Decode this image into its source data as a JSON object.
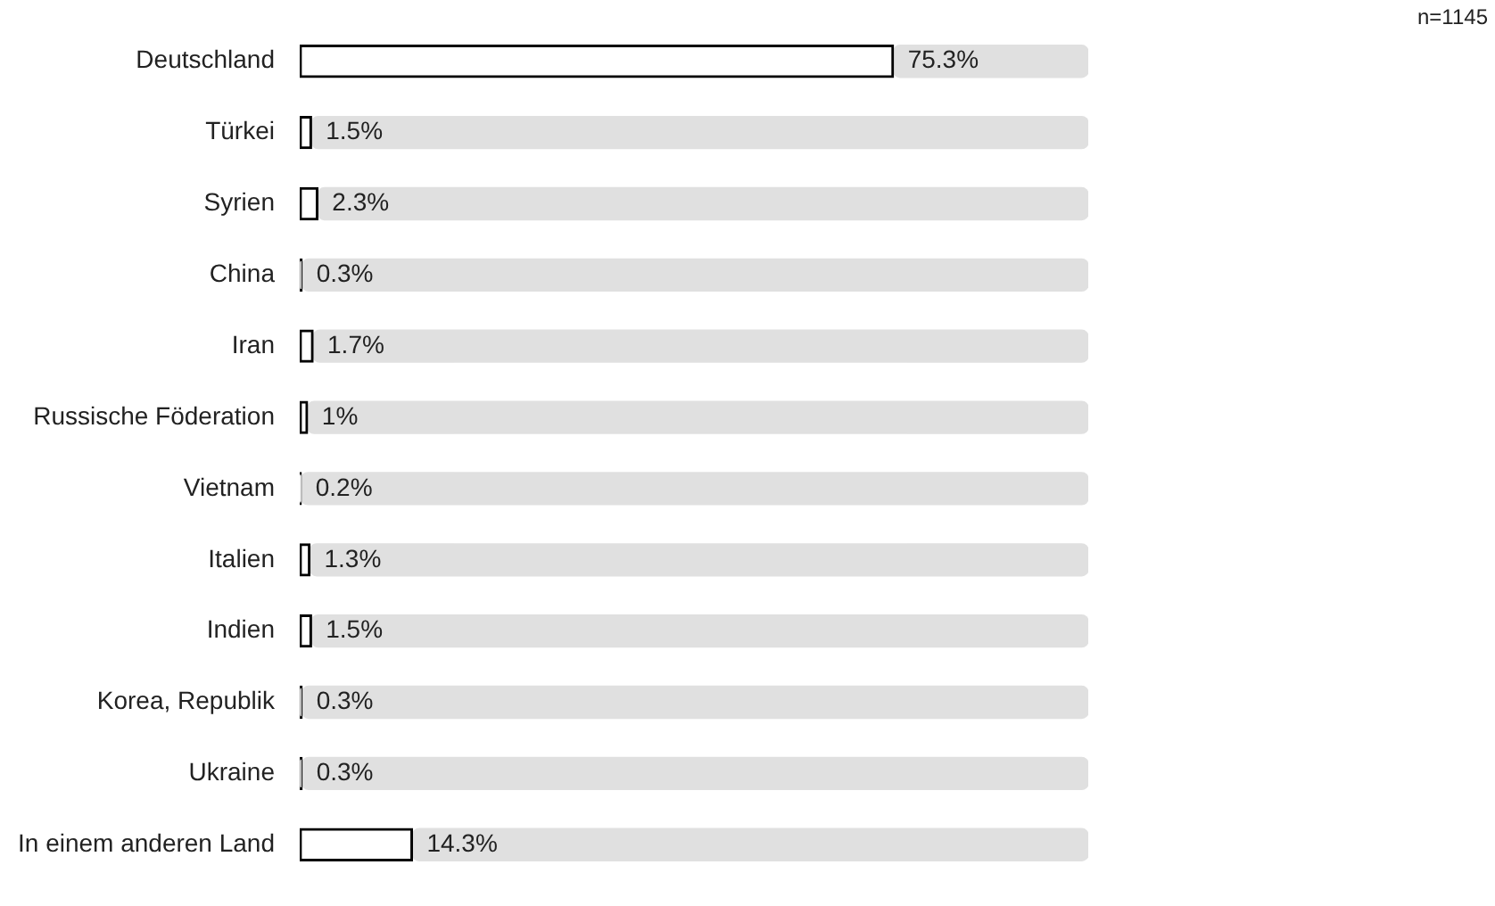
{
  "chart_data": {
    "type": "bar",
    "orientation": "horizontal",
    "stacked": true,
    "categories": [
      "Deutschland",
      "Türkei",
      "Syrien",
      "China",
      "Iran",
      "Russische Föderation",
      "Vietnam",
      "Italien",
      "Indien",
      "Korea, Republik",
      "Ukraine",
      "In einem anderen Land"
    ],
    "series": [
      {
        "color": "#ffffff",
        "values": [
          75.3,
          1.5,
          2.3,
          0.3,
          1.7,
          1,
          0.2,
          1.3,
          1.5,
          0.3,
          0.3,
          14.3
        ],
        "value_labels": [
          "75.3%",
          "1.5%",
          "2.3%",
          "0.3%",
          "1.7%",
          "1%",
          "0.2%",
          "1.3%",
          "1.5%",
          "0.3%",
          "0.3%",
          "14.3%"
        ]
      },
      {
        "color": "#e0e0e0",
        "values": [
          24.7,
          98.5,
          97.7,
          99.7,
          98.3,
          99,
          99.8,
          98.7,
          98.5,
          99.7,
          99.7,
          85.7
        ]
      }
    ],
    "tick_labels": "y",
    "grid": false,
    "legend": false,
    "annotations": [
      "n=1145"
    ]
  }
}
